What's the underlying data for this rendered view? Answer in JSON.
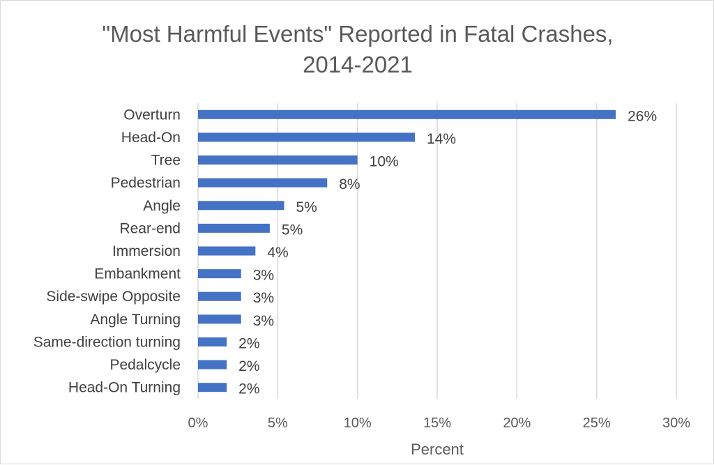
{
  "chart_data": {
    "type": "bar",
    "orientation": "horizontal",
    "title": "\"Most Harmful Events\" Reported in Fatal Crashes, 2014-2021",
    "title_lines": [
      "\"Most Harmful Events\" Reported in Fatal Crashes,",
      "2014-2021"
    ],
    "xlabel": "Percent",
    "ylabel": "",
    "categories": [
      "Overturn",
      "Head-On",
      "Tree",
      "Pedestrian",
      "Angle",
      "Rear-end",
      "Immersion",
      "Embankment",
      "Side-swipe Opposite",
      "Angle Turning",
      "Same-direction turning",
      "Pedalcycle",
      "Head-On Turning"
    ],
    "values": [
      26.2,
      13.6,
      10.0,
      8.1,
      5.4,
      4.5,
      3.6,
      2.7,
      2.7,
      2.7,
      1.8,
      1.8,
      1.8
    ],
    "data_labels": [
      "26%",
      "14%",
      "10%",
      "8%",
      "5%",
      "5%",
      "4%",
      "3%",
      "3%",
      "3%",
      "2%",
      "2%",
      "2%"
    ],
    "xlim": [
      0,
      30
    ],
    "xticks": [
      0,
      5,
      10,
      15,
      20,
      25,
      30
    ],
    "xtick_labels": [
      "0%",
      "5%",
      "10%",
      "15%",
      "20%",
      "25%",
      "30%"
    ],
    "grid": "vertical",
    "legend": "none",
    "bar_color": "#4472C4",
    "grid_color": "#d9d9d9"
  }
}
